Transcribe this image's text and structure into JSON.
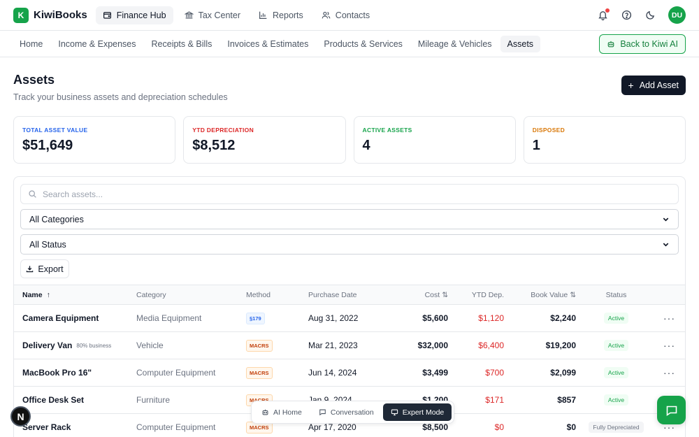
{
  "brand": {
    "logo_letter": "K",
    "name": "KiwiBooks"
  },
  "topnav": [
    {
      "label": "Finance Hub",
      "icon": "wallet-icon"
    },
    {
      "label": "Tax Center",
      "icon": "bank-icon"
    },
    {
      "label": "Reports",
      "icon": "bar-chart-icon"
    },
    {
      "label": "Contacts",
      "icon": "users-icon"
    }
  ],
  "user": {
    "initials": "DU"
  },
  "subnav": [
    "Home",
    "Income & Expenses",
    "Receipts & Bills",
    "Invoices & Estimates",
    "Products & Services",
    "Mileage & Vehicles",
    "Assets"
  ],
  "back_button": "Back to Kiwi AI",
  "page": {
    "title": "Assets",
    "subtitle": "Track your business assets and depreciation schedules",
    "add_button": "Add Asset"
  },
  "stats": [
    {
      "label": "TOTAL ASSET VALUE",
      "value": "$51,649",
      "color": "#2563eb"
    },
    {
      "label": "YTD DEPRECIATION",
      "value": "$8,512",
      "color": "#dc2626"
    },
    {
      "label": "ACTIVE ASSETS",
      "value": "4",
      "color": "#16a34a"
    },
    {
      "label": "DISPOSED",
      "value": "1",
      "color": "#d97706"
    }
  ],
  "filters": {
    "search_placeholder": "Search assets...",
    "category_selected": "All Categories",
    "status_selected": "All Status",
    "export_label": "Export"
  },
  "table": {
    "headers": {
      "name": "Name",
      "category": "Category",
      "method": "Method",
      "purchase_date": "Purchase Date",
      "cost": "Cost",
      "ytd": "YTD Dep.",
      "book": "Book Value",
      "status": "Status"
    },
    "rows": [
      {
        "name": "Camera Equipment",
        "note": "",
        "category": "Media Equipment",
        "method": "§179",
        "date": "Aug 31, 2022",
        "cost": "$5,600",
        "ytd": "$1,120",
        "book": "$2,240",
        "status": "Active"
      },
      {
        "name": "Delivery Van",
        "note": "80% business",
        "category": "Vehicle",
        "method": "MACRS",
        "date": "Mar 21, 2023",
        "cost": "$32,000",
        "ytd": "$6,400",
        "book": "$19,200",
        "status": "Active"
      },
      {
        "name": "MacBook Pro 16\"",
        "note": "",
        "category": "Computer Equipment",
        "method": "MACRS",
        "date": "Jun 14, 2024",
        "cost": "$3,499",
        "ytd": "$700",
        "book": "$2,099",
        "status": "Active"
      },
      {
        "name": "Office Desk Set",
        "note": "",
        "category": "Furniture",
        "method": "MACRS",
        "date": "Jan 9, 2024",
        "cost": "$1,200",
        "ytd": "$171",
        "book": "$857",
        "status": "Active"
      },
      {
        "name": "Server Rack",
        "note": "",
        "category": "Computer Equipment",
        "method": "MACRS",
        "date": "Apr 17, 2020",
        "cost": "$8,500",
        "ytd": "$0",
        "book": "$0",
        "status": "Fully Depreciated"
      }
    ]
  },
  "modes": [
    "AI Home",
    "Conversation",
    "Expert Mode"
  ],
  "n_badge": "N"
}
